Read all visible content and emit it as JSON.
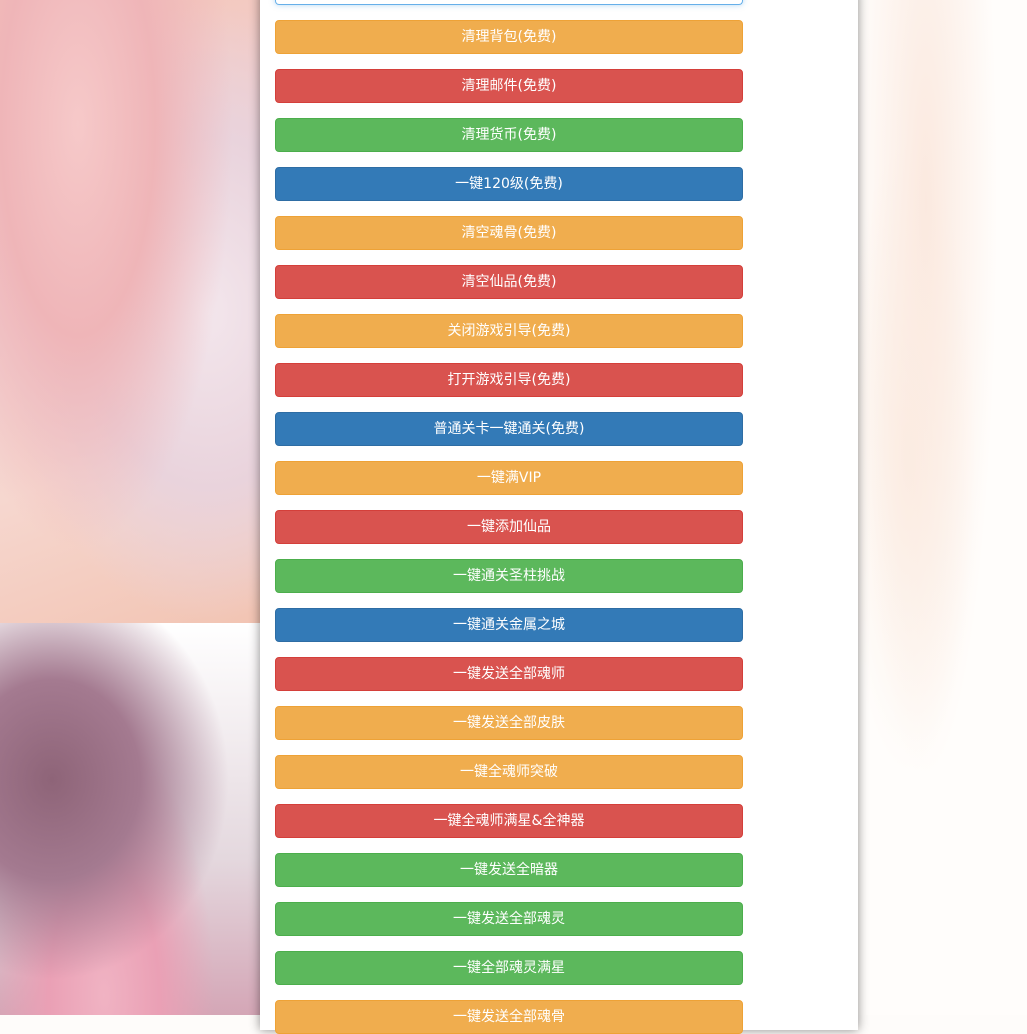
{
  "buttons": [
    {
      "label": "清理背包(免费)",
      "style": "warning"
    },
    {
      "label": "清理邮件(免费)",
      "style": "danger"
    },
    {
      "label": "清理货币(免费)",
      "style": "success"
    },
    {
      "label": "一键120级(免费)",
      "style": "primary"
    },
    {
      "label": "清空魂骨(免费)",
      "style": "warning"
    },
    {
      "label": "清空仙品(免费)",
      "style": "danger"
    },
    {
      "label": "关闭游戏引导(免费)",
      "style": "warning"
    },
    {
      "label": "打开游戏引导(免费)",
      "style": "danger"
    },
    {
      "label": "普通关卡一键通关(免费)",
      "style": "primary"
    },
    {
      "label": "一键满VIP",
      "style": "warning"
    },
    {
      "label": "一键添加仙品",
      "style": "danger"
    },
    {
      "label": "一键通关圣柱挑战",
      "style": "success"
    },
    {
      "label": "一键通关金属之城",
      "style": "primary"
    },
    {
      "label": "一键发送全部魂师",
      "style": "danger"
    },
    {
      "label": "一键发送全部皮肤",
      "style": "warning"
    },
    {
      "label": "一键全魂师突破",
      "style": "warning"
    },
    {
      "label": "一键全魂师满星&全神器",
      "style": "danger"
    },
    {
      "label": "一键发送全暗器",
      "style": "success"
    },
    {
      "label": "一键发送全部魂灵",
      "style": "success"
    },
    {
      "label": "一键全部魂灵满星",
      "style": "success"
    },
    {
      "label": "一键发送全部魂骨",
      "style": "warning"
    }
  ],
  "colors": {
    "warning": "#f0ad4e",
    "danger": "#d9534f",
    "success": "#5cb85c",
    "primary": "#337ab7"
  }
}
